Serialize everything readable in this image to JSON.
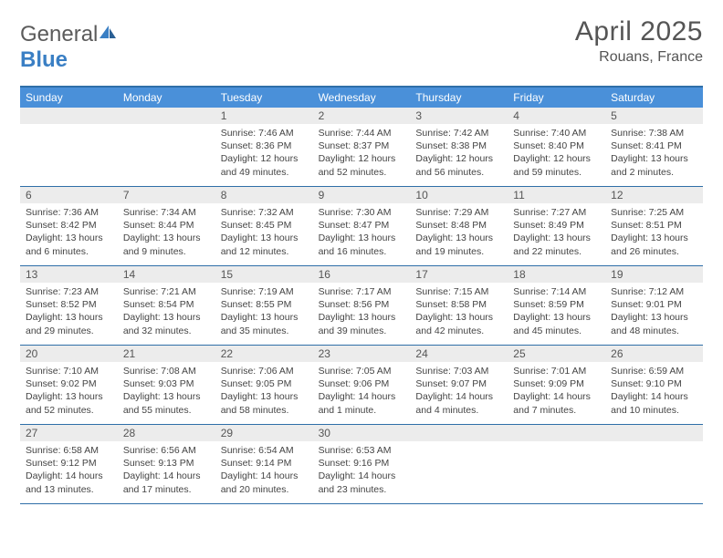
{
  "brand": {
    "name_gray": "General",
    "name_blue": "Blue"
  },
  "title": "April 2025",
  "location": "Rouans, France",
  "colors": {
    "header_bar": "#4a90d9",
    "header_border": "#2f6fa8",
    "daynum_bg": "#ececec",
    "text": "#444444"
  },
  "weekdays": [
    "Sunday",
    "Monday",
    "Tuesday",
    "Wednesday",
    "Thursday",
    "Friday",
    "Saturday"
  ],
  "weeks": [
    [
      null,
      null,
      {
        "n": "1",
        "sr": "7:46 AM",
        "ss": "8:36 PM",
        "dl": "12 hours and 49 minutes."
      },
      {
        "n": "2",
        "sr": "7:44 AM",
        "ss": "8:37 PM",
        "dl": "12 hours and 52 minutes."
      },
      {
        "n": "3",
        "sr": "7:42 AM",
        "ss": "8:38 PM",
        "dl": "12 hours and 56 minutes."
      },
      {
        "n": "4",
        "sr": "7:40 AM",
        "ss": "8:40 PM",
        "dl": "12 hours and 59 minutes."
      },
      {
        "n": "5",
        "sr": "7:38 AM",
        "ss": "8:41 PM",
        "dl": "13 hours and 2 minutes."
      }
    ],
    [
      {
        "n": "6",
        "sr": "7:36 AM",
        "ss": "8:42 PM",
        "dl": "13 hours and 6 minutes."
      },
      {
        "n": "7",
        "sr": "7:34 AM",
        "ss": "8:44 PM",
        "dl": "13 hours and 9 minutes."
      },
      {
        "n": "8",
        "sr": "7:32 AM",
        "ss": "8:45 PM",
        "dl": "13 hours and 12 minutes."
      },
      {
        "n": "9",
        "sr": "7:30 AM",
        "ss": "8:47 PM",
        "dl": "13 hours and 16 minutes."
      },
      {
        "n": "10",
        "sr": "7:29 AM",
        "ss": "8:48 PM",
        "dl": "13 hours and 19 minutes."
      },
      {
        "n": "11",
        "sr": "7:27 AM",
        "ss": "8:49 PM",
        "dl": "13 hours and 22 minutes."
      },
      {
        "n": "12",
        "sr": "7:25 AM",
        "ss": "8:51 PM",
        "dl": "13 hours and 26 minutes."
      }
    ],
    [
      {
        "n": "13",
        "sr": "7:23 AM",
        "ss": "8:52 PM",
        "dl": "13 hours and 29 minutes."
      },
      {
        "n": "14",
        "sr": "7:21 AM",
        "ss": "8:54 PM",
        "dl": "13 hours and 32 minutes."
      },
      {
        "n": "15",
        "sr": "7:19 AM",
        "ss": "8:55 PM",
        "dl": "13 hours and 35 minutes."
      },
      {
        "n": "16",
        "sr": "7:17 AM",
        "ss": "8:56 PM",
        "dl": "13 hours and 39 minutes."
      },
      {
        "n": "17",
        "sr": "7:15 AM",
        "ss": "8:58 PM",
        "dl": "13 hours and 42 minutes."
      },
      {
        "n": "18",
        "sr": "7:14 AM",
        "ss": "8:59 PM",
        "dl": "13 hours and 45 minutes."
      },
      {
        "n": "19",
        "sr": "7:12 AM",
        "ss": "9:01 PM",
        "dl": "13 hours and 48 minutes."
      }
    ],
    [
      {
        "n": "20",
        "sr": "7:10 AM",
        "ss": "9:02 PM",
        "dl": "13 hours and 52 minutes."
      },
      {
        "n": "21",
        "sr": "7:08 AM",
        "ss": "9:03 PM",
        "dl": "13 hours and 55 minutes."
      },
      {
        "n": "22",
        "sr": "7:06 AM",
        "ss": "9:05 PM",
        "dl": "13 hours and 58 minutes."
      },
      {
        "n": "23",
        "sr": "7:05 AM",
        "ss": "9:06 PM",
        "dl": "14 hours and 1 minute."
      },
      {
        "n": "24",
        "sr": "7:03 AM",
        "ss": "9:07 PM",
        "dl": "14 hours and 4 minutes."
      },
      {
        "n": "25",
        "sr": "7:01 AM",
        "ss": "9:09 PM",
        "dl": "14 hours and 7 minutes."
      },
      {
        "n": "26",
        "sr": "6:59 AM",
        "ss": "9:10 PM",
        "dl": "14 hours and 10 minutes."
      }
    ],
    [
      {
        "n": "27",
        "sr": "6:58 AM",
        "ss": "9:12 PM",
        "dl": "14 hours and 13 minutes."
      },
      {
        "n": "28",
        "sr": "6:56 AM",
        "ss": "9:13 PM",
        "dl": "14 hours and 17 minutes."
      },
      {
        "n": "29",
        "sr": "6:54 AM",
        "ss": "9:14 PM",
        "dl": "14 hours and 20 minutes."
      },
      {
        "n": "30",
        "sr": "6:53 AM",
        "ss": "9:16 PM",
        "dl": "14 hours and 23 minutes."
      },
      null,
      null,
      null
    ]
  ],
  "labels": {
    "sunrise": "Sunrise: ",
    "sunset": "Sunset: ",
    "daylight": "Daylight: "
  }
}
